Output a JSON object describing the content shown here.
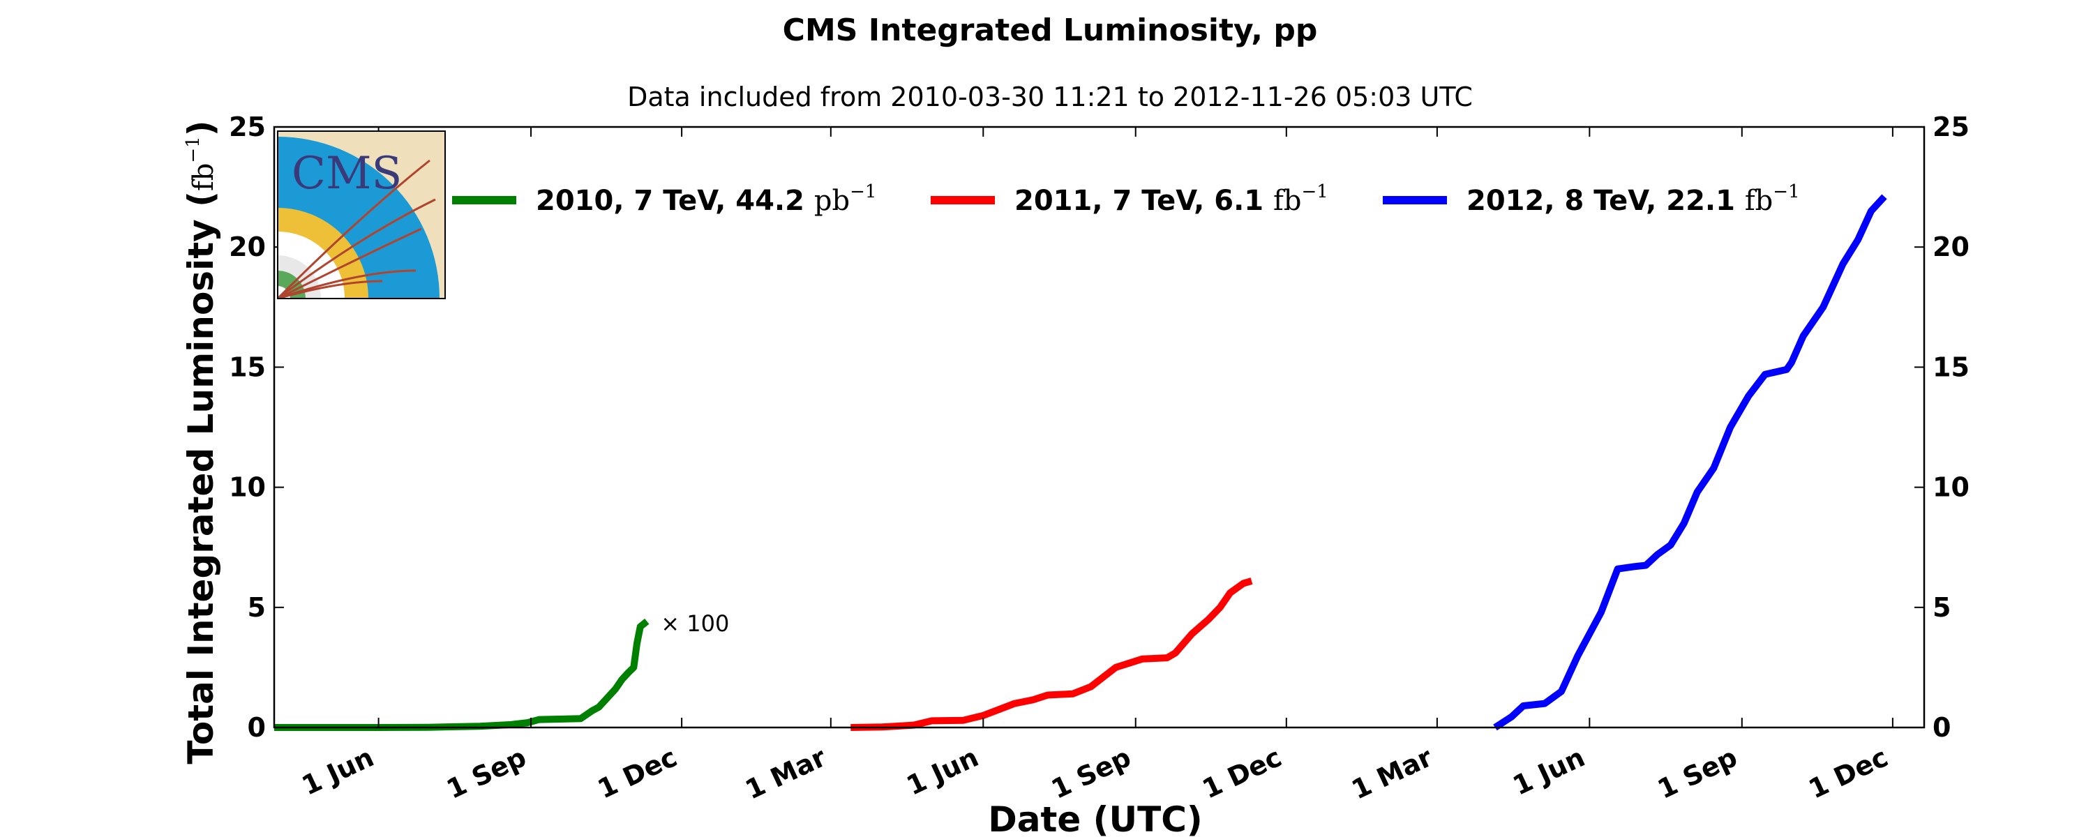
{
  "chart_data": {
    "type": "line",
    "title": "CMS Integrated Luminosity, pp",
    "subtitle": "Data included from 2010-03-30 11:21 to 2012-11-26 05:03 UTC",
    "xlabel": "Date (UTC)",
    "ylabel_text": "Total Integrated Luminosity (",
    "ylabel_unit": "fb",
    "ylabel_sup": "−1",
    "ylabel_close": ")",
    "xlim": [
      "2010-03-30",
      "2012-12-20"
    ],
    "ylim": [
      0,
      25
    ],
    "yticks": [
      0,
      5,
      10,
      15,
      20,
      25
    ],
    "xticks": [
      {
        "date": "2010-06-01",
        "label": "1 Jun"
      },
      {
        "date": "2010-09-01",
        "label": "1 Sep"
      },
      {
        "date": "2010-12-01",
        "label": "1 Dec"
      },
      {
        "date": "2011-03-01",
        "label": "1 Mar"
      },
      {
        "date": "2011-06-01",
        "label": "1 Jun"
      },
      {
        "date": "2011-09-01",
        "label": "1 Sep"
      },
      {
        "date": "2011-12-01",
        "label": "1 Dec"
      },
      {
        "date": "2012-03-01",
        "label": "1 Mar"
      },
      {
        "date": "2012-06-01",
        "label": "1 Jun"
      },
      {
        "date": "2012-09-01",
        "label": "1 Sep"
      },
      {
        "date": "2012-12-01",
        "label": "1 Dec"
      }
    ],
    "legend_position": "upper-center",
    "grid": false,
    "logo_text": "CMS",
    "annotation": "× 100",
    "series": [
      {
        "name": "2010, 7 TeV, 44.2",
        "unit": "pb",
        "unit_sup": "−1",
        "color": "#008000",
        "scale_note": "× 100",
        "points": [
          [
            "2010-03-30",
            0.0
          ],
          [
            "2010-05-01",
            0.0
          ],
          [
            "2010-06-01",
            0.0
          ],
          [
            "2010-07-01",
            0.01
          ],
          [
            "2010-08-01",
            0.05
          ],
          [
            "2010-08-20",
            0.12
          ],
          [
            "2010-08-30",
            0.2
          ],
          [
            "2010-09-06",
            0.33
          ],
          [
            "2010-09-20",
            0.35
          ],
          [
            "2010-10-01",
            0.37
          ],
          [
            "2010-10-08",
            0.7
          ],
          [
            "2010-10-12",
            0.85
          ],
          [
            "2010-10-18",
            1.3
          ],
          [
            "2010-10-22",
            1.6
          ],
          [
            "2010-10-26",
            2.0
          ],
          [
            "2010-10-30",
            2.3
          ],
          [
            "2010-11-02",
            2.5
          ],
          [
            "2010-11-04",
            3.5
          ],
          [
            "2010-11-06",
            4.2
          ],
          [
            "2010-11-10",
            4.42
          ]
        ]
      },
      {
        "name": "2011, 7 TeV, 6.1",
        "unit": "fb",
        "unit_sup": "−1",
        "color": "#ff0000",
        "points": [
          [
            "2011-03-13",
            0.0
          ],
          [
            "2011-04-01",
            0.02
          ],
          [
            "2011-04-20",
            0.1
          ],
          [
            "2011-05-01",
            0.28
          ],
          [
            "2011-05-20",
            0.3
          ],
          [
            "2011-06-01",
            0.5
          ],
          [
            "2011-06-20",
            1.0
          ],
          [
            "2011-07-01",
            1.15
          ],
          [
            "2011-07-10",
            1.35
          ],
          [
            "2011-07-25",
            1.4
          ],
          [
            "2011-08-05",
            1.7
          ],
          [
            "2011-08-20",
            2.5
          ],
          [
            "2011-09-05",
            2.85
          ],
          [
            "2011-09-20",
            2.9
          ],
          [
            "2011-09-25",
            3.1
          ],
          [
            "2011-10-05",
            3.9
          ],
          [
            "2011-10-15",
            4.5
          ],
          [
            "2011-10-22",
            5.0
          ],
          [
            "2011-10-28",
            5.6
          ],
          [
            "2011-11-05",
            6.0
          ],
          [
            "2011-11-10",
            6.1
          ]
        ]
      },
      {
        "name": "2012, 8 TeV, 22.1",
        "unit": "fb",
        "unit_sup": "−1",
        "color": "#0000ff",
        "points": [
          [
            "2012-04-05",
            0.0
          ],
          [
            "2012-04-15",
            0.45
          ],
          [
            "2012-04-22",
            0.9
          ],
          [
            "2012-05-05",
            1.0
          ],
          [
            "2012-05-15",
            1.5
          ],
          [
            "2012-05-25",
            3.0
          ],
          [
            "2012-06-08",
            4.8
          ],
          [
            "2012-06-18",
            6.6
          ],
          [
            "2012-06-28",
            6.7
          ],
          [
            "2012-07-05",
            6.75
          ],
          [
            "2012-07-12",
            7.2
          ],
          [
            "2012-07-20",
            7.6
          ],
          [
            "2012-07-28",
            8.5
          ],
          [
            "2012-08-05",
            9.8
          ],
          [
            "2012-08-15",
            10.8
          ],
          [
            "2012-08-25",
            12.5
          ],
          [
            "2012-09-05",
            13.8
          ],
          [
            "2012-09-15",
            14.7
          ],
          [
            "2012-09-28",
            14.9
          ],
          [
            "2012-10-01",
            15.2
          ],
          [
            "2012-10-08",
            16.3
          ],
          [
            "2012-10-20",
            17.5
          ],
          [
            "2012-11-01",
            19.3
          ],
          [
            "2012-11-10",
            20.3
          ],
          [
            "2012-11-18",
            21.5
          ],
          [
            "2012-11-26",
            22.1
          ]
        ]
      }
    ]
  }
}
